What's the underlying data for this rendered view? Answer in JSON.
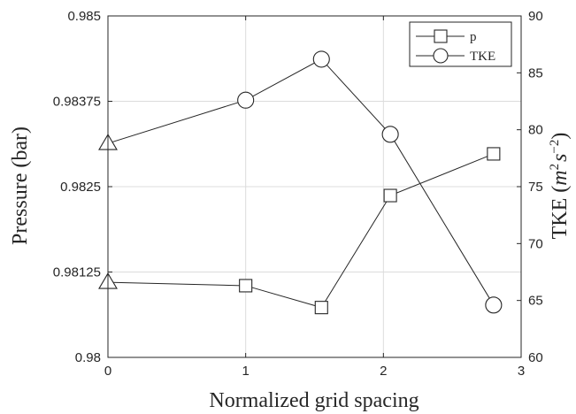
{
  "chart_data": {
    "type": "line",
    "xlabel": "Normalized grid spacing",
    "ylabel_left": "Pressure (bar)",
    "ylabel_right_prefix": "TKE (",
    "ylabel_right_unit_m": "m",
    "ylabel_right_unit_m_exp": "2",
    "ylabel_right_unit_s": "s",
    "ylabel_right_unit_s_exp": "−2",
    "ylabel_right_suffix": ")",
    "xlim": [
      0,
      3
    ],
    "ylim_left": [
      0.98,
      0.985
    ],
    "ylim_right": [
      60,
      90
    ],
    "x_ticks": [
      0,
      1,
      2,
      3
    ],
    "x_tick_labels": [
      "0",
      "1",
      "2",
      "3"
    ],
    "y_left_ticks": [
      0.98,
      0.98125,
      0.9825,
      0.98375,
      0.985
    ],
    "y_left_tick_labels": [
      "0.98",
      "0.98125",
      "0.9825",
      "0.98375",
      "0.985"
    ],
    "y_right_ticks": [
      60,
      65,
      70,
      75,
      80,
      85,
      90
    ],
    "y_right_tick_labels": [
      "60",
      "65",
      "70",
      "75",
      "80",
      "85",
      "90"
    ],
    "grid": true,
    "legend_position": "top-right",
    "series": [
      {
        "name": "p",
        "axis": "left",
        "marker": "square",
        "x": [
          0,
          1,
          1.55,
          2.05,
          2.8
        ],
        "y": [
          0.9811,
          0.98105,
          0.98073,
          0.98237,
          0.98298
        ],
        "first_point_marker": "triangle"
      },
      {
        "name": "TKE",
        "axis": "right",
        "marker": "circle",
        "x": [
          0,
          1,
          1.55,
          2.05,
          2.8
        ],
        "y": [
          78.8,
          82.6,
          86.2,
          79.6,
          64.6
        ],
        "first_point_marker": "triangle"
      }
    ]
  }
}
